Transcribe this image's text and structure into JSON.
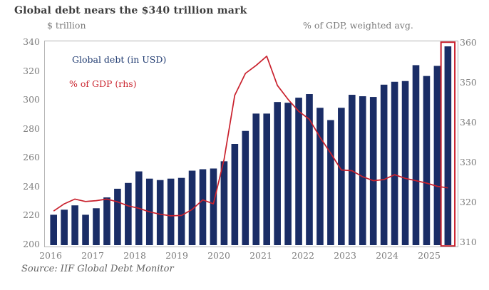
{
  "chart_data": {
    "type": "bar+line",
    "title": "Global debt nears the $340 trillion mark",
    "source": "Source: IIF Global Debt Monitor",
    "x": [
      "2016 Q1",
      "2016 Q2",
      "2016 Q3",
      "2016 Q4",
      "2017 Q1",
      "2017 Q2",
      "2017 Q3",
      "2017 Q4",
      "2018 Q1",
      "2018 Q2",
      "2018 Q3",
      "2018 Q4",
      "2019 Q1",
      "2019 Q2",
      "2019 Q3",
      "2019 Q4",
      "2020 Q1",
      "2020 Q2",
      "2020 Q3",
      "2020 Q4",
      "2021 Q1",
      "2021 Q2",
      "2021 Q3",
      "2021 Q4",
      "2022 Q1",
      "2022 Q2",
      "2022 Q3",
      "2022 Q4",
      "2023 Q1",
      "2023 Q2",
      "2023 Q3",
      "2023 Q4",
      "2024 Q1",
      "2024 Q2",
      "2024 Q3",
      "2024 Q4",
      "2025 Q1",
      "2025 Q2"
    ],
    "year_labels": [
      "2016",
      "2017",
      "2018",
      "2019",
      "2020",
      "2021",
      "2022",
      "2023",
      "2024",
      "2025"
    ],
    "left_axis": {
      "label": "$ trillion",
      "min": 200,
      "max": 340,
      "ticks": [
        340,
        320,
        300,
        280,
        260,
        240,
        220,
        200
      ]
    },
    "right_axis": {
      "label": "% of GDP, weighted avg.",
      "min": 310,
      "max": 360,
      "ticks": [
        360,
        350,
        340,
        330,
        320,
        310
      ]
    },
    "series": [
      {
        "name": "Global debt (in USD)",
        "type": "bar",
        "axis": "left",
        "color": "#1a2d66",
        "values": [
          221,
          224.5,
          227.5,
          221,
          225.5,
          233,
          239,
          243,
          251,
          246,
          245,
          246,
          246.5,
          251.5,
          252.5,
          253,
          258,
          270,
          279,
          291,
          291,
          299,
          298.5,
          302,
          304.5,
          295,
          286.5,
          295,
          304,
          303,
          302.5,
          311,
          313,
          313.5,
          324.5,
          317,
          324,
          337.5
        ]
      },
      {
        "name": "% of GDP (rhs)",
        "type": "line",
        "axis": "right",
        "color": "#c9202c",
        "values": [
          318,
          319.8,
          321,
          320.4,
          320.6,
          321,
          320.3,
          319.3,
          318.7,
          317.8,
          317.2,
          316.8,
          316.9,
          318.4,
          320.8,
          319.8,
          331,
          347,
          352.5,
          354.5,
          356.8,
          349.5,
          346,
          343,
          341,
          336.5,
          332.5,
          328.3,
          328.1,
          326.6,
          325.6,
          325.9,
          327.1,
          326.2,
          325.6,
          325,
          324.2,
          323.8
        ]
      }
    ],
    "highlight_box": {
      "color": "#c9202c",
      "target_index": 37,
      "note": "last bar highlighted"
    },
    "legend": [
      {
        "label": "Global debt (in USD)",
        "color": "#1f3a70"
      },
      {
        "label": "% of GDP (rhs)",
        "color": "#cb2630"
      }
    ]
  }
}
